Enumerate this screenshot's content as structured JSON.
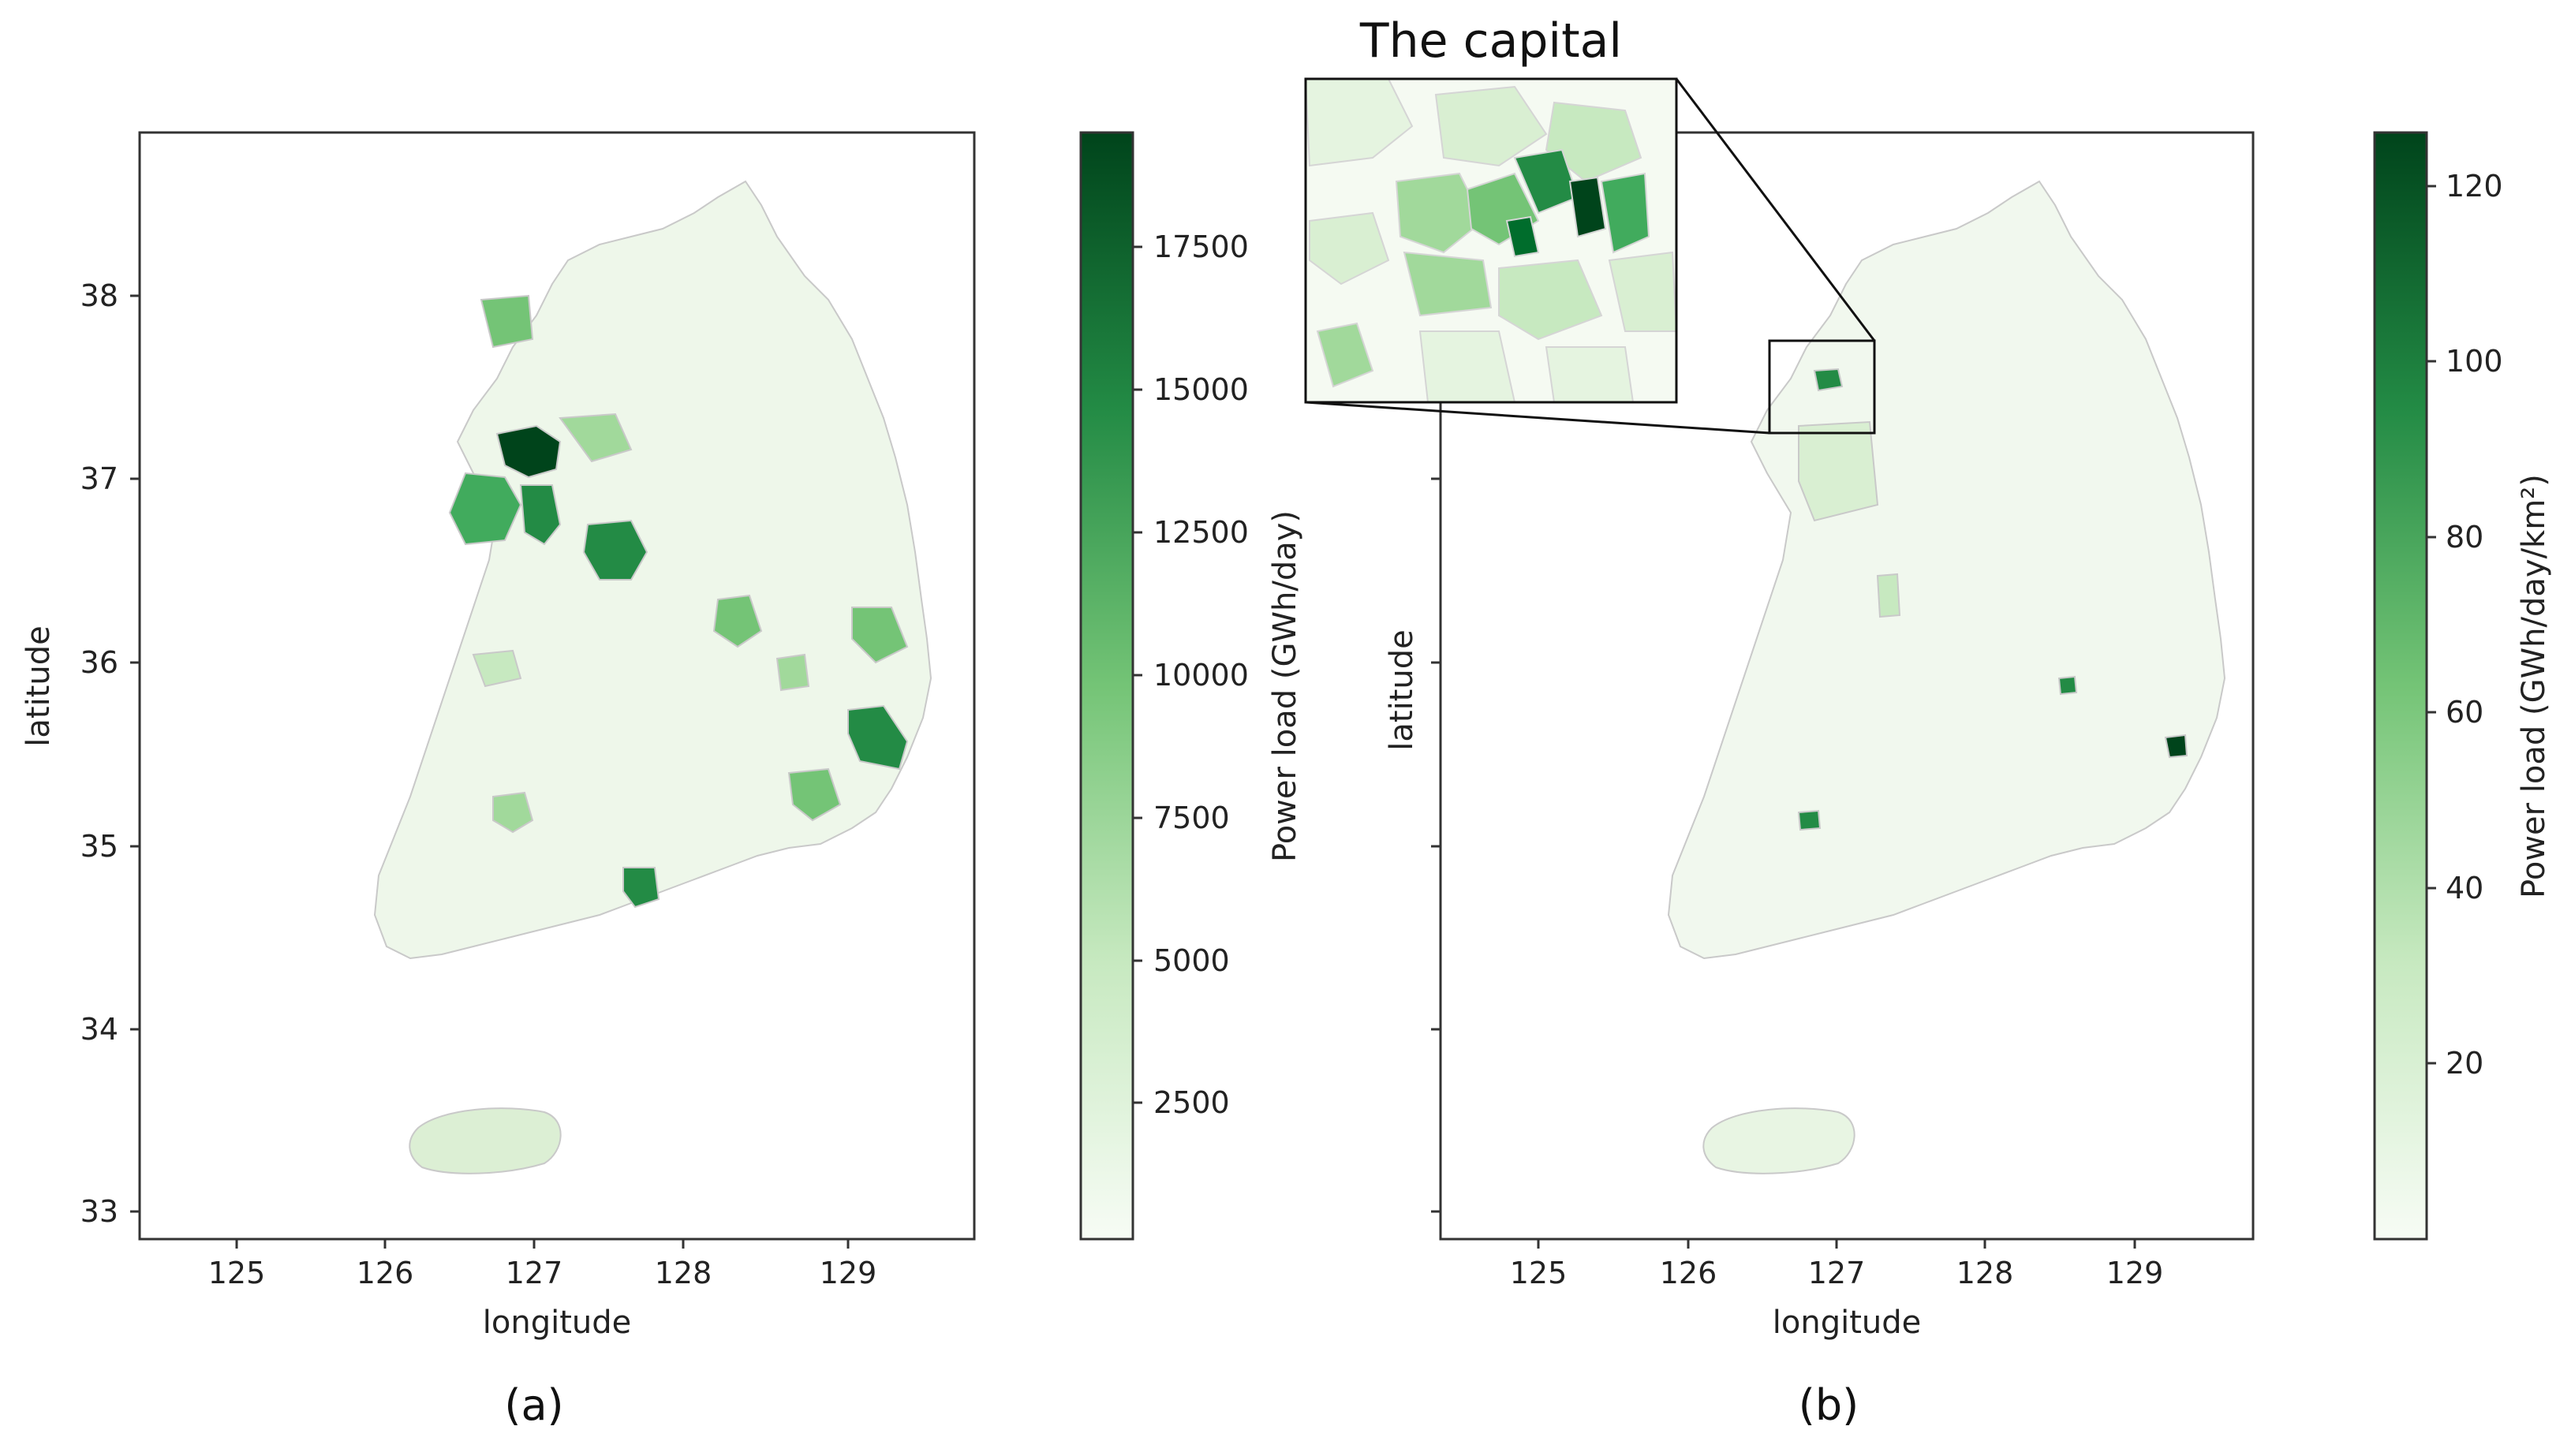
{
  "figure": {
    "panels": [
      {
        "id": "a",
        "panel_label": "(a)",
        "xlabel": "longitude",
        "ylabel": "latitude",
        "x_ticks": [
          "125",
          "126",
          "127",
          "128",
          "129"
        ],
        "y_ticks": [
          "33",
          "34",
          "35",
          "36",
          "37",
          "38"
        ],
        "colorbar": {
          "label": "Power load (GWh/day)",
          "ticks": [
            "2500",
            "5000",
            "7500",
            "10000",
            "12500",
            "15000",
            "17500"
          ],
          "tick_values": [
            2500,
            5000,
            7500,
            10000,
            12500,
            15000,
            17500
          ],
          "range": [
            0,
            19400
          ],
          "colormap": "Greens"
        }
      },
      {
        "id": "b",
        "panel_label": "(b)",
        "xlabel": "longitude",
        "ylabel": "latitude",
        "x_ticks": [
          "125",
          "126",
          "127",
          "128",
          "129"
        ],
        "colorbar": {
          "label": "Power load (GWh/day/km²)",
          "ticks": [
            "20",
            "40",
            "60",
            "80",
            "100",
            "120"
          ],
          "tick_values": [
            20,
            40,
            60,
            80,
            100,
            120
          ],
          "range": [
            0,
            126
          ],
          "colormap": "Greens"
        },
        "inset": {
          "title": "The capital"
        }
      }
    ],
    "colors": {
      "lightest": "#f3faf0",
      "darkest": "#00441b",
      "boundary": "#c9c9c9",
      "frame": "#333333"
    }
  }
}
